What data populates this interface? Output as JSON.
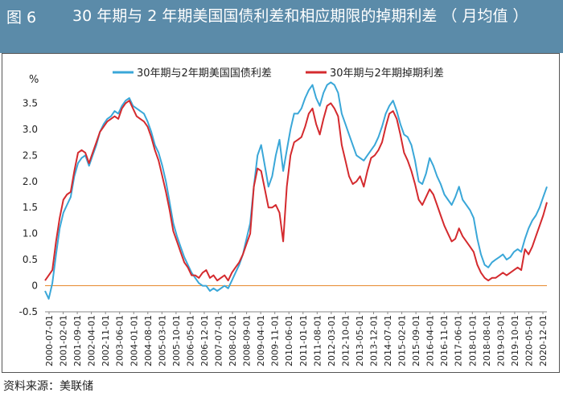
{
  "header": {
    "figure_no": "图 6",
    "title": "30 年期与 2 年期美国国债利差和相应期限的掉期利差 （ 月均值 ）"
  },
  "source": "资料来源：美联储",
  "colors": {
    "header_bg": "#5b8ba9",
    "series_a": "#3aa7d8",
    "series_b": "#d42a2e",
    "zero_line": "#e6892d"
  },
  "chart_data": {
    "type": "line",
    "unit_label": "%",
    "ylim": [
      -0.5,
      4.0
    ],
    "yticks": [
      "-0.5",
      "0",
      "0.5",
      "1.0",
      "1.5",
      "2.0",
      "2.5",
      "3.0",
      "3.5"
    ],
    "xticks": [
      "2000-07-01",
      "2001-02-01",
      "2001-09-01",
      "2002-04-01",
      "2002-11-01",
      "2003-06-01",
      "2004-01-01",
      "2004-08-01",
      "2005-03-01",
      "2005-10-01",
      "2006-05-01",
      "2006-12-01",
      "2007-07-01",
      "2008-02-01",
      "2008-09-01",
      "2009-04-01",
      "2009-11-01",
      "2010-06-01",
      "2011-01-01",
      "2011-08-01",
      "2012-03-01",
      "2012-10-01",
      "2013-05-01",
      "2013-12-01",
      "2014-07-01",
      "2015-02-01",
      "2015-09-01",
      "2016-04-01",
      "2016-11-01",
      "2017-06-01",
      "2018-01-01",
      "2018-08-01",
      "2019-03-01",
      "2019-10-01",
      "2020-05-01",
      "2020-12-01"
    ],
    "legend_position": "top",
    "series": [
      {
        "name": "30年期与2年期美国国债利差",
        "color": "#3aa7d8",
        "points": [
          [
            0,
            -0.1
          ],
          [
            1,
            -0.25
          ],
          [
            2,
            0.05
          ],
          [
            3,
            0.6
          ],
          [
            4,
            1.1
          ],
          [
            5,
            1.4
          ],
          [
            6,
            1.55
          ],
          [
            7,
            1.7
          ],
          [
            8,
            2.1
          ],
          [
            9,
            2.35
          ],
          [
            10,
            2.45
          ],
          [
            11,
            2.5
          ],
          [
            12,
            2.3
          ],
          [
            13,
            2.5
          ],
          [
            14,
            2.7
          ],
          [
            15,
            2.95
          ],
          [
            16,
            3.1
          ],
          [
            17,
            3.2
          ],
          [
            18,
            3.25
          ],
          [
            19,
            3.35
          ],
          [
            20,
            3.3
          ],
          [
            21,
            3.45
          ],
          [
            22,
            3.55
          ],
          [
            23,
            3.6
          ],
          [
            24,
            3.45
          ],
          [
            25,
            3.4
          ],
          [
            26,
            3.35
          ],
          [
            27,
            3.3
          ],
          [
            28,
            3.15
          ],
          [
            29,
            2.95
          ],
          [
            30,
            2.7
          ],
          [
            31,
            2.55
          ],
          [
            32,
            2.3
          ],
          [
            33,
            2.0
          ],
          [
            34,
            1.6
          ],
          [
            35,
            1.2
          ],
          [
            36,
            0.95
          ],
          [
            37,
            0.75
          ],
          [
            38,
            0.55
          ],
          [
            39,
            0.4
          ],
          [
            40,
            0.25
          ],
          [
            41,
            0.15
          ],
          [
            42,
            0.05
          ],
          [
            43,
            0.0
          ],
          [
            44,
            0.0
          ],
          [
            45,
            -0.1
          ],
          [
            46,
            -0.05
          ],
          [
            47,
            -0.1
          ],
          [
            48,
            -0.05
          ],
          [
            49,
            0.0
          ],
          [
            50,
            -0.05
          ],
          [
            51,
            0.1
          ],
          [
            52,
            0.25
          ],
          [
            53,
            0.4
          ],
          [
            54,
            0.6
          ],
          [
            55,
            0.9
          ],
          [
            56,
            1.2
          ],
          [
            57,
            1.9
          ],
          [
            58,
            2.5
          ],
          [
            59,
            2.7
          ],
          [
            60,
            2.3
          ],
          [
            61,
            1.9
          ],
          [
            62,
            2.1
          ],
          [
            63,
            2.5
          ],
          [
            64,
            2.8
          ],
          [
            65,
            2.2
          ],
          [
            66,
            2.6
          ],
          [
            67,
            3.0
          ],
          [
            68,
            3.3
          ],
          [
            69,
            3.3
          ],
          [
            70,
            3.4
          ],
          [
            71,
            3.6
          ],
          [
            72,
            3.75
          ],
          [
            73,
            3.85
          ],
          [
            74,
            3.6
          ],
          [
            75,
            3.45
          ],
          [
            76,
            3.7
          ],
          [
            77,
            3.85
          ],
          [
            78,
            3.9
          ],
          [
            79,
            3.85
          ],
          [
            80,
            3.7
          ],
          [
            81,
            3.3
          ],
          [
            82,
            3.1
          ],
          [
            83,
            2.9
          ],
          [
            84,
            2.7
          ],
          [
            85,
            2.5
          ],
          [
            86,
            2.45
          ],
          [
            87,
            2.4
          ],
          [
            88,
            2.5
          ],
          [
            89,
            2.6
          ],
          [
            90,
            2.7
          ],
          [
            91,
            2.85
          ],
          [
            92,
            3.05
          ],
          [
            93,
            3.3
          ],
          [
            94,
            3.45
          ],
          [
            95,
            3.55
          ],
          [
            96,
            3.35
          ],
          [
            97,
            3.1
          ],
          [
            98,
            2.9
          ],
          [
            99,
            2.85
          ],
          [
            100,
            2.7
          ],
          [
            101,
            2.4
          ],
          [
            102,
            2.0
          ],
          [
            103,
            1.95
          ],
          [
            104,
            2.15
          ],
          [
            105,
            2.45
          ],
          [
            106,
            2.3
          ],
          [
            107,
            2.1
          ],
          [
            108,
            1.95
          ],
          [
            109,
            1.75
          ],
          [
            110,
            1.65
          ],
          [
            111,
            1.55
          ],
          [
            112,
            1.7
          ],
          [
            113,
            1.9
          ],
          [
            114,
            1.65
          ],
          [
            115,
            1.55
          ],
          [
            116,
            1.45
          ],
          [
            117,
            1.3
          ],
          [
            118,
            0.9
          ],
          [
            119,
            0.6
          ],
          [
            120,
            0.4
          ],
          [
            121,
            0.35
          ],
          [
            122,
            0.45
          ],
          [
            123,
            0.5
          ],
          [
            124,
            0.55
          ],
          [
            125,
            0.6
          ],
          [
            126,
            0.5
          ],
          [
            127,
            0.55
          ],
          [
            128,
            0.65
          ],
          [
            129,
            0.7
          ],
          [
            130,
            0.65
          ],
          [
            131,
            0.9
          ],
          [
            132,
            1.1
          ],
          [
            133,
            1.25
          ],
          [
            134,
            1.35
          ],
          [
            135,
            1.5
          ],
          [
            136,
            1.7
          ],
          [
            137,
            1.9
          ]
        ]
      },
      {
        "name": "30年期与2年期掉期利差",
        "color": "#d42a2e",
        "points": [
          [
            0,
            0.1
          ],
          [
            1,
            0.2
          ],
          [
            2,
            0.3
          ],
          [
            3,
            0.85
          ],
          [
            4,
            1.3
          ],
          [
            5,
            1.65
          ],
          [
            6,
            1.75
          ],
          [
            7,
            1.8
          ],
          [
            8,
            2.2
          ],
          [
            9,
            2.55
          ],
          [
            10,
            2.6
          ],
          [
            11,
            2.55
          ],
          [
            12,
            2.35
          ],
          [
            13,
            2.55
          ],
          [
            14,
            2.75
          ],
          [
            15,
            2.95
          ],
          [
            16,
            3.05
          ],
          [
            17,
            3.15
          ],
          [
            18,
            3.2
          ],
          [
            19,
            3.25
          ],
          [
            20,
            3.2
          ],
          [
            21,
            3.4
          ],
          [
            22,
            3.5
          ],
          [
            23,
            3.55
          ],
          [
            24,
            3.4
          ],
          [
            25,
            3.25
          ],
          [
            26,
            3.2
          ],
          [
            27,
            3.15
          ],
          [
            28,
            3.05
          ],
          [
            29,
            2.85
          ],
          [
            30,
            2.6
          ],
          [
            31,
            2.4
          ],
          [
            32,
            2.1
          ],
          [
            33,
            1.8
          ],
          [
            34,
            1.45
          ],
          [
            35,
            1.05
          ],
          [
            36,
            0.85
          ],
          [
            37,
            0.65
          ],
          [
            38,
            0.45
          ],
          [
            39,
            0.35
          ],
          [
            40,
            0.2
          ],
          [
            41,
            0.2
          ],
          [
            42,
            0.15
          ],
          [
            43,
            0.25
          ],
          [
            44,
            0.3
          ],
          [
            45,
            0.15
          ],
          [
            46,
            0.2
          ],
          [
            47,
            0.1
          ],
          [
            48,
            0.15
          ],
          [
            49,
            0.2
          ],
          [
            50,
            0.1
          ],
          [
            51,
            0.25
          ],
          [
            52,
            0.35
          ],
          [
            53,
            0.45
          ],
          [
            54,
            0.6
          ],
          [
            55,
            0.8
          ],
          [
            56,
            1.0
          ],
          [
            57,
            1.9
          ],
          [
            58,
            2.25
          ],
          [
            59,
            2.2
          ],
          [
            60,
            1.85
          ],
          [
            61,
            1.5
          ],
          [
            62,
            1.5
          ],
          [
            63,
            1.55
          ],
          [
            64,
            1.4
          ],
          [
            65,
            0.85
          ],
          [
            66,
            1.9
          ],
          [
            67,
            2.5
          ],
          [
            68,
            2.75
          ],
          [
            69,
            2.8
          ],
          [
            70,
            2.85
          ],
          [
            71,
            3.05
          ],
          [
            72,
            3.3
          ],
          [
            73,
            3.4
          ],
          [
            74,
            3.1
          ],
          [
            75,
            2.9
          ],
          [
            76,
            3.2
          ],
          [
            77,
            3.45
          ],
          [
            78,
            3.5
          ],
          [
            79,
            3.4
          ],
          [
            80,
            3.25
          ],
          [
            81,
            2.7
          ],
          [
            82,
            2.4
          ],
          [
            83,
            2.1
          ],
          [
            84,
            1.95
          ],
          [
            85,
            2.0
          ],
          [
            86,
            2.1
          ],
          [
            87,
            1.9
          ],
          [
            88,
            2.2
          ],
          [
            89,
            2.45
          ],
          [
            90,
            2.5
          ],
          [
            91,
            2.6
          ],
          [
            92,
            2.75
          ],
          [
            93,
            3.05
          ],
          [
            94,
            3.3
          ],
          [
            95,
            3.35
          ],
          [
            96,
            3.2
          ],
          [
            97,
            2.9
          ],
          [
            98,
            2.55
          ],
          [
            99,
            2.4
          ],
          [
            100,
            2.2
          ],
          [
            101,
            1.95
          ],
          [
            102,
            1.65
          ],
          [
            103,
            1.55
          ],
          [
            104,
            1.7
          ],
          [
            105,
            1.85
          ],
          [
            106,
            1.75
          ],
          [
            107,
            1.55
          ],
          [
            108,
            1.35
          ],
          [
            109,
            1.15
          ],
          [
            110,
            1.0
          ],
          [
            111,
            0.85
          ],
          [
            112,
            0.9
          ],
          [
            113,
            1.1
          ],
          [
            114,
            0.95
          ],
          [
            115,
            0.85
          ],
          [
            116,
            0.75
          ],
          [
            117,
            0.65
          ],
          [
            118,
            0.4
          ],
          [
            119,
            0.25
          ],
          [
            120,
            0.15
          ],
          [
            121,
            0.1
          ],
          [
            122,
            0.15
          ],
          [
            123,
            0.15
          ],
          [
            124,
            0.2
          ],
          [
            125,
            0.25
          ],
          [
            126,
            0.2
          ],
          [
            127,
            0.25
          ],
          [
            128,
            0.3
          ],
          [
            129,
            0.35
          ],
          [
            130,
            0.3
          ],
          [
            131,
            0.7
          ],
          [
            132,
            0.6
          ],
          [
            133,
            0.75
          ],
          [
            134,
            0.95
          ],
          [
            135,
            1.15
          ],
          [
            136,
            1.35
          ],
          [
            137,
            1.6
          ]
        ]
      }
    ]
  }
}
